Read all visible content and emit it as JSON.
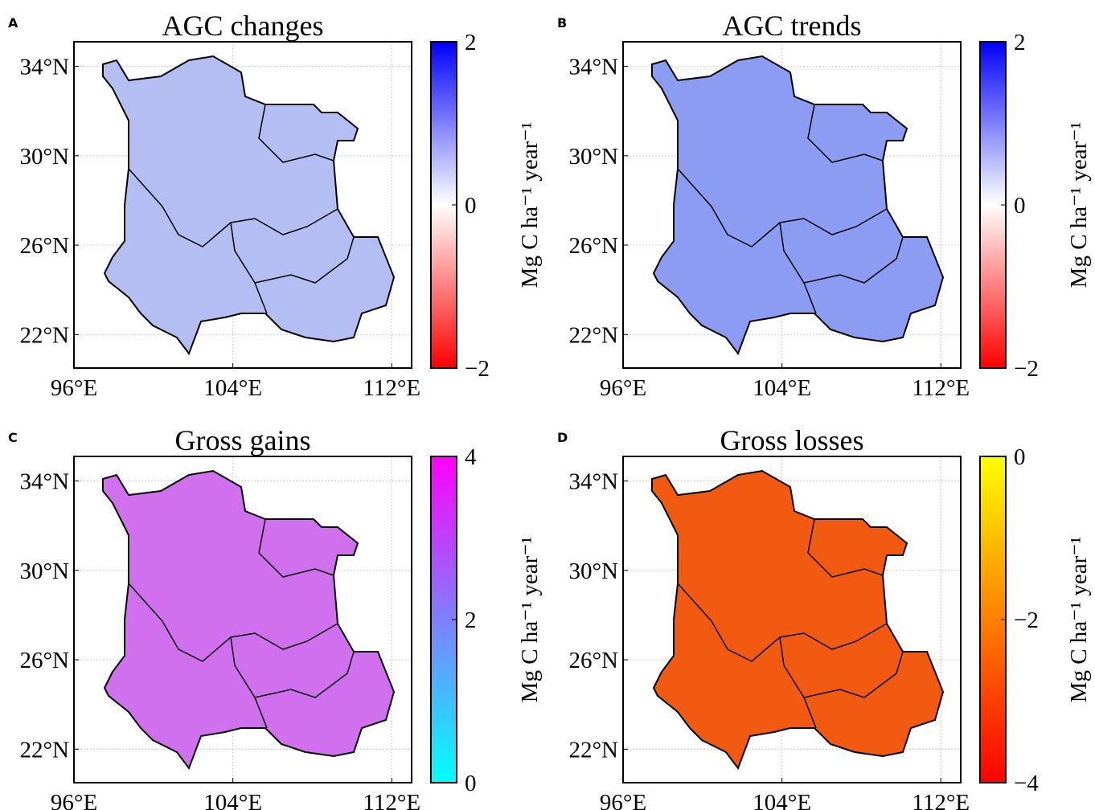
{
  "panels": [
    {
      "letter": "A",
      "title": "AGC changes",
      "xlim": [
        96,
        113
      ],
      "ylim": [
        20.5,
        35.1
      ],
      "xticks": [
        {
          "value": 96,
          "label": "96°E"
        },
        {
          "value": 104,
          "label": "104°E"
        },
        {
          "value": 112,
          "label": "112°E"
        }
      ],
      "yticks": [
        {
          "value": 22,
          "label": "22°N"
        },
        {
          "value": 26,
          "label": "26°N"
        },
        {
          "value": 30,
          "label": "30°N"
        },
        {
          "value": 34,
          "label": "34°N"
        }
      ],
      "colorbar": {
        "label": "Mg C ha⁻¹ year⁻¹",
        "lim": [
          -2,
          2
        ],
        "colors": [
          "#ff0000",
          "#ffffff",
          "#0000ff"
        ],
        "ticks": [
          {
            "value": -2,
            "label": "−2"
          },
          0,
          2
        ]
      }
    },
    {
      "letter": "B",
      "title": "AGC trends",
      "xlim": [
        96,
        113
      ],
      "ylim": [
        20.5,
        35.1
      ],
      "xticks": [
        {
          "value": 96,
          "label": "96°E"
        },
        {
          "value": 104,
          "label": "104°E"
        },
        {
          "value": 112,
          "label": "112°E"
        }
      ],
      "yticks": [
        {
          "value": 22,
          "label": "22°N"
        },
        {
          "value": 26,
          "label": "26°N"
        },
        {
          "value": 30,
          "label": "30°N"
        },
        {
          "value": 34,
          "label": "34°N"
        }
      ],
      "colorbar": {
        "label": "Mg C ha⁻¹ year⁻¹",
        "lim": [
          -2,
          2
        ],
        "colors": [
          "#ff0000",
          "#ffffff",
          "#0000ff"
        ],
        "ticks": [
          {
            "value": -2,
            "label": "−2"
          },
          0,
          2
        ]
      }
    },
    {
      "letter": "C",
      "title": "Gross gains",
      "xlim": [
        96,
        113
      ],
      "ylim": [
        20.5,
        35.1
      ],
      "xticks": [
        {
          "value": 96,
          "label": "96°E"
        },
        {
          "value": 104,
          "label": "104°E"
        },
        {
          "value": 112,
          "label": "112°E"
        }
      ],
      "yticks": [
        {
          "value": 22,
          "label": "22°N"
        },
        {
          "value": 26,
          "label": "26°N"
        },
        {
          "value": 30,
          "label": "30°N"
        },
        {
          "value": 34,
          "label": "34°N"
        }
      ],
      "colorbar": {
        "label": "Mg C ha⁻¹ year⁻¹",
        "lim": [
          0,
          4
        ],
        "colors": [
          "#00ffff",
          "#ff00ff"
        ],
        "ticks": [
          0,
          2,
          4
        ]
      }
    },
    {
      "letter": "D",
      "title": "Gross losses",
      "xlim": [
        96,
        113
      ],
      "ylim": [
        20.5,
        35.1
      ],
      "xticks": [
        {
          "value": 96,
          "label": "96°E"
        },
        {
          "value": 104,
          "label": "104°E"
        },
        {
          "value": 112,
          "label": "112°E"
        }
      ],
      "yticks": [
        {
          "value": 22,
          "label": "22°N"
        },
        {
          "value": 26,
          "label": "26°N"
        },
        {
          "value": 30,
          "label": "30°N"
        },
        {
          "value": 34,
          "label": "34°N"
        }
      ],
      "colorbar": {
        "label": "Mg C ha⁻¹ year⁻¹",
        "lim": [
          -4,
          0
        ],
        "colors": [
          "#ff0000",
          "#ffff00"
        ],
        "ticks": [
          {
            "value": -4,
            "label": "−4"
          },
          {
            "value": -2,
            "label": "−2"
          },
          0
        ]
      }
    }
  ]
}
